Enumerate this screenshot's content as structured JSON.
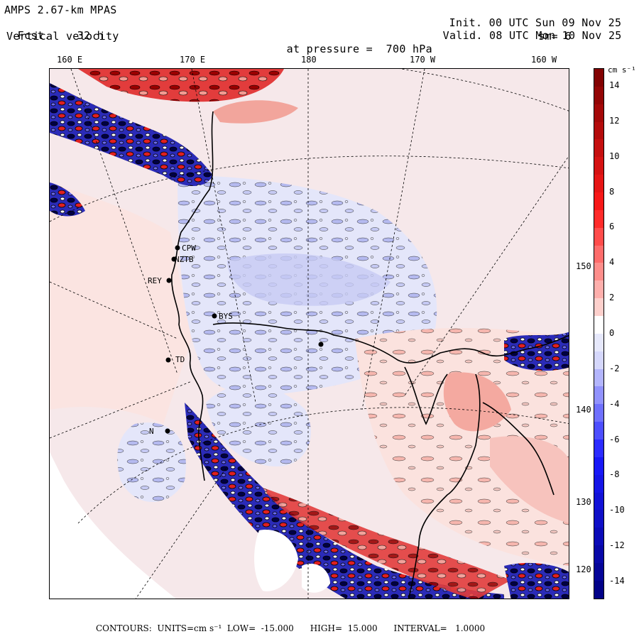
{
  "header": {
    "model": "AMPS 2.67-km MPAS",
    "fcst_label": "Fcst.",
    "fcst_value": "32 h",
    "field": "Vertical velocity",
    "init_label": "Init.",
    "init_time": "00 UTC Sun 09 Nov 25",
    "valid_label": "Valid.",
    "valid_time": "08 UTC Mon 10 Nov 25",
    "pressure_label": "at pressure =",
    "pressure_value": "700 hPa",
    "smoothing": "sm= 6"
  },
  "longitude_labels": [
    "160 E",
    "170 E",
    "180",
    "170 W",
    "160 W"
  ],
  "latitude_labels": [
    "150 W",
    "140 W",
    "130 W",
    "120 W"
  ],
  "stations": [
    {
      "code": "CPW"
    },
    {
      "code": "NZTB"
    },
    {
      "code": "REY"
    },
    {
      "code": "BYS"
    },
    {
      "code": "TD"
    },
    {
      "code": "N"
    }
  ],
  "colorbar": {
    "unit": "cm s⁻¹",
    "min": -15,
    "max": 15,
    "tick_labels": [
      "14",
      "12",
      "10",
      "8",
      "6",
      "4",
      "2",
      "0",
      "-2",
      "-4",
      "-6",
      "-8",
      "-10",
      "-12",
      "-14"
    ],
    "colors": {
      "positive_max": "#7a0000",
      "positive_mid": "#ff1a1a",
      "positive_low": "#fde0dc",
      "zero": "#ffffff",
      "negative_low": "#e6e8fb",
      "negative_mid": "#1a1aff",
      "negative_max": "#000080"
    }
  },
  "footer": {
    "contours_label": "CONTOURS:",
    "units_text": "UNITS=cm s⁻¹",
    "low_text": "LOW=  -15.000",
    "high_text": "HIGH=  15.000",
    "interval_text": "INTERVAL=   1.0000"
  }
}
